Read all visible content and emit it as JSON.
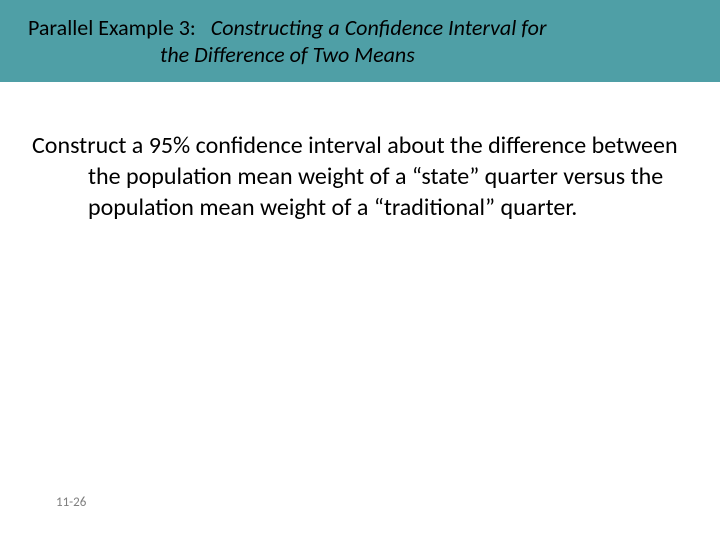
{
  "title": {
    "label": "Parallel Example 3:",
    "topic_line1": "Constructing a Confidence Interval for",
    "topic_line2": "the Difference of Two Means"
  },
  "body": "Construct a 95% confidence interval about the difference between the population mean weight of a “state” quarter versus the population mean weight of a “traditional” quarter.",
  "page_number": "11-26",
  "colors": {
    "title_bg": "#4f9fa6",
    "title_text": "#000000",
    "body_text": "#000000",
    "page_num_text": "#7f7f7f",
    "slide_bg": "#ffffff"
  },
  "fonts": {
    "title_size_pt": 16,
    "body_size_pt": 18,
    "page_num_size_pt": 10
  }
}
